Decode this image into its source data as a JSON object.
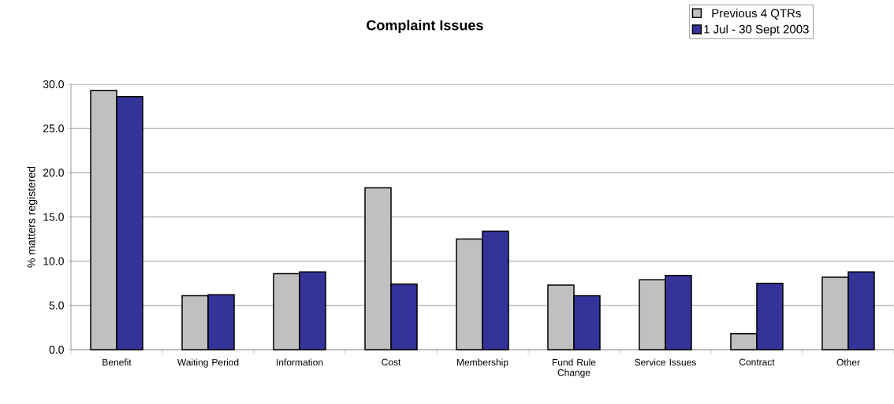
{
  "chart_data": {
    "type": "bar",
    "title": "Complaint Issues",
    "ylabel": "% matters registered",
    "categories": [
      "Benefit",
      "Waiting Period",
      "Information",
      "Cost",
      "Membership",
      "Fund Rule Change",
      "Service Issues",
      "Contract",
      "Other"
    ],
    "series": [
      {
        "name": "Previous 4 QTRs",
        "color": "#c0c0c0",
        "values": [
          29.3,
          6.1,
          8.6,
          18.3,
          12.5,
          7.3,
          7.9,
          1.8,
          8.2
        ]
      },
      {
        "name": "1 Jul - 30 Sept 2003",
        "color": "#333399",
        "values": [
          28.6,
          6.2,
          8.8,
          7.4,
          13.4,
          6.1,
          8.4,
          7.5,
          8.8
        ]
      }
    ],
    "ylim": [
      0,
      30
    ],
    "yticks": [
      {
        "value": 0,
        "label": "0.0"
      },
      {
        "value": 5,
        "label": "5.0"
      },
      {
        "value": 10,
        "label": "10.0"
      },
      {
        "value": 15,
        "label": "15.0"
      },
      {
        "value": 20,
        "label": "20.0"
      },
      {
        "value": 25,
        "label": "25.0"
      },
      {
        "value": 30,
        "label": "30.0"
      }
    ],
    "grid": "y",
    "legend": "top right"
  }
}
